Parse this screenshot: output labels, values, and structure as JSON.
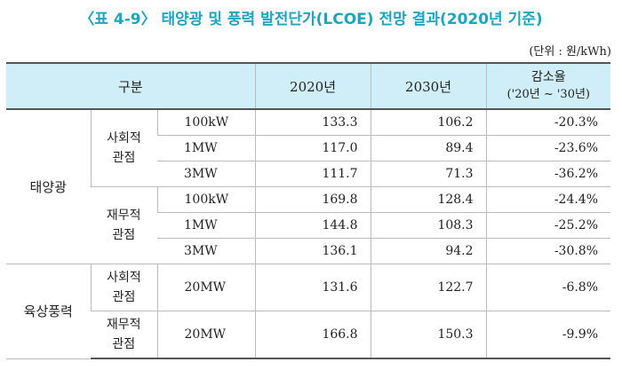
{
  "title": "〈표 4-9〉 태양광 및 풍력 발전단가(LCOE) 전망 결과(2020년 기준)",
  "unit": "(단위 : 원/kWh)",
  "header": {
    "category": "구분",
    "y2020": "2020년",
    "y2030": "2030년",
    "rate_line1": "감소율",
    "rate_line2": "('20년 ~ '30년)"
  },
  "groups": [
    {
      "name": "태양광",
      "views": [
        {
          "name": "사회적 관점",
          "rows": [
            {
              "capacity": "100kW",
              "v2020": "133.3",
              "v2030": "106.2",
              "rate": "-20.3%"
            },
            {
              "capacity": "1MW",
              "v2020": "117.0",
              "v2030": "89.4",
              "rate": "-23.6%"
            },
            {
              "capacity": "3MW",
              "v2020": "111.7",
              "v2030": "71.3",
              "rate": "-36.2%"
            }
          ]
        },
        {
          "name": "재무적 관점",
          "rows": [
            {
              "capacity": "100kW",
              "v2020": "169.8",
              "v2030": "128.4",
              "rate": "-24.4%"
            },
            {
              "capacity": "1MW",
              "v2020": "144.8",
              "v2030": "108.3",
              "rate": "-25.2%"
            },
            {
              "capacity": "3MW",
              "v2020": "136.1",
              "v2030": "94.2",
              "rate": "-30.8%"
            }
          ]
        }
      ]
    },
    {
      "name": "육상풍력",
      "views": [
        {
          "name": "사회적 관점",
          "rows": [
            {
              "capacity": "20MW",
              "v2020": "131.6",
              "v2030": "122.7",
              "rate": "-6.8%"
            }
          ]
        },
        {
          "name": "재무적 관점",
          "rows": [
            {
              "capacity": "20MW",
              "v2020": "166.8",
              "v2030": "150.3",
              "rate": "-9.9%"
            }
          ]
        }
      ]
    }
  ]
}
